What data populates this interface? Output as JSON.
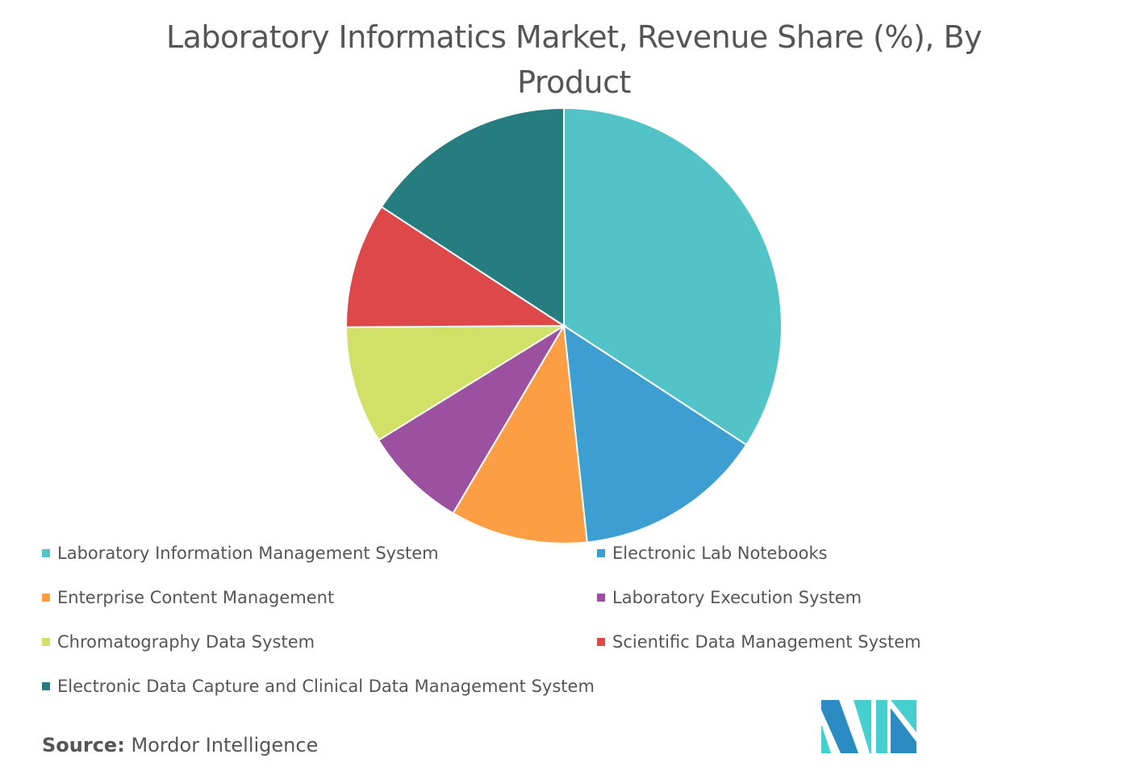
{
  "chart_data": {
    "type": "pie",
    "title": "Laboratory Informatics Market, Revenue Share (%), By Product",
    "legend_placement": "bottom",
    "slices": [
      {
        "label": "Laboratory Information Management System",
        "value": 34.2,
        "color": "#52c3c7"
      },
      {
        "label": "Electronic Lab Notebooks",
        "value": 14.1,
        "color": "#3d9ed1"
      },
      {
        "label": "Enterprise Content Management",
        "value": 10.2,
        "color": "#fd9e45"
      },
      {
        "label": "Laboratory Execution System",
        "value": 7.7,
        "color": "#9b51a0"
      },
      {
        "label": "Chromatography Data System",
        "value": 8.7,
        "color": "#d1e067"
      },
      {
        "label": "Scientific Data Management System",
        "value": 9.3,
        "color": "#df4848"
      },
      {
        "label": "Electronic Data Capture and Clinical Data Management System",
        "value": 15.8,
        "color": "#267d80"
      }
    ]
  },
  "source": {
    "label": "Source:",
    "value": "Mordor Intelligence"
  }
}
